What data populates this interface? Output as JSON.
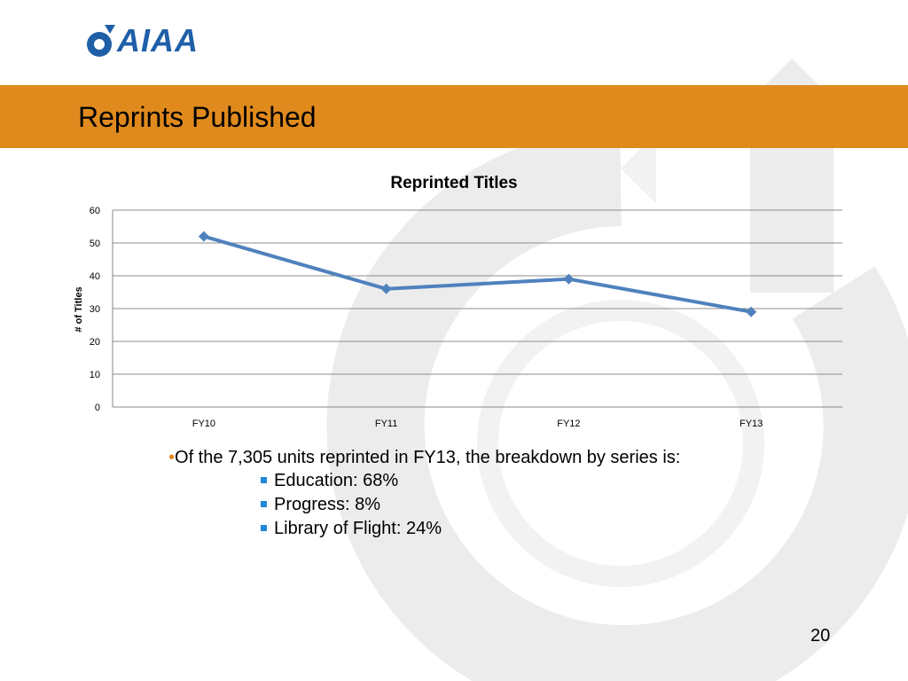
{
  "slide": {
    "logo_text": "AIAA",
    "title": "Reprints Published",
    "page_number": "20",
    "accent_color": "#e08a1e",
    "line_color": "#4f81bd"
  },
  "bullets": {
    "main": "Of the 7,305 units reprinted in FY13, the breakdown by series is:",
    "sub": [
      "Education:  68%",
      "Progress:  8%",
      "Library of Flight:  24%"
    ]
  },
  "chart_data": {
    "type": "line",
    "title": "Reprinted Titles",
    "xlabel": "",
    "ylabel": "# of Titles",
    "categories": [
      "FY10",
      "FY11",
      "FY12",
      "FY13"
    ],
    "series": [
      {
        "values": [
          52,
          36,
          39,
          29
        ]
      }
    ],
    "ylim": [
      0,
      60
    ],
    "yticks": [
      0,
      10,
      20,
      30,
      40,
      50,
      60
    ],
    "grid": true,
    "legend": "none"
  }
}
